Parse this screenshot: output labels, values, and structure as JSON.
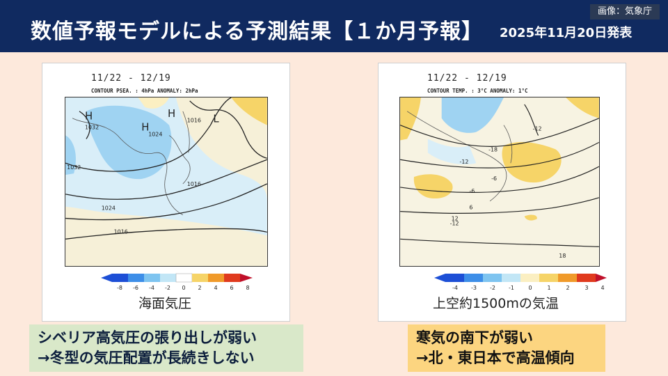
{
  "header": {
    "title": "数値予報モデルによる予測結果【１か月予報】",
    "date": "2025年11月20日発表",
    "credit": "画像：気象庁"
  },
  "panels": [
    {
      "period": "11/22 - 12/19",
      "contour_text": "CONTOUR PSEA. :  4hPa   ANOMALY:  2hPa",
      "caption": "海面気圧",
      "map_labels": [
        "H",
        "H",
        "H",
        "L",
        "1032",
        "1024",
        "1032",
        "1016",
        "1024",
        "1016",
        "1016"
      ],
      "colorbar_ticks": [
        "-8",
        "-6",
        "-4",
        "-2",
        "0",
        "2",
        "4",
        "6",
        "8"
      ]
    },
    {
      "period": "11/22 - 12/19",
      "contour_text": "CONTOUR TEMP. :  3°C   ANOMALY:  1°C",
      "caption": "上空約1500mの気温",
      "map_labels": [
        "-12",
        "-18",
        "-12",
        "-6",
        "-6",
        "-12",
        "6",
        "12",
        "18"
      ],
      "colorbar_ticks": [
        "-4",
        "-3",
        "-2",
        "-1",
        "0",
        "1",
        "2",
        "3",
        "4"
      ]
    }
  ],
  "notes": [
    {
      "line1": "シベリア高気圧の張り出しが弱い",
      "line2": "→冬型の気圧配置が長続きしない"
    },
    {
      "line1": "寒気の南下が弱い",
      "line2": "→北・東日本で高温傾向"
    }
  ],
  "colors": {
    "header_bg": "#102a60",
    "page_bg": "#fde9dc",
    "note_left_bg": "#d9e8c9",
    "note_right_bg": "#fcd580",
    "anomaly_neg": [
      "#1d4fd6",
      "#3d8ee8",
      "#7ec4f0",
      "#c2e6f6"
    ],
    "anomaly_pos": [
      "#fbefc2",
      "#f6d468",
      "#f09a2a",
      "#e03a1e"
    ]
  }
}
